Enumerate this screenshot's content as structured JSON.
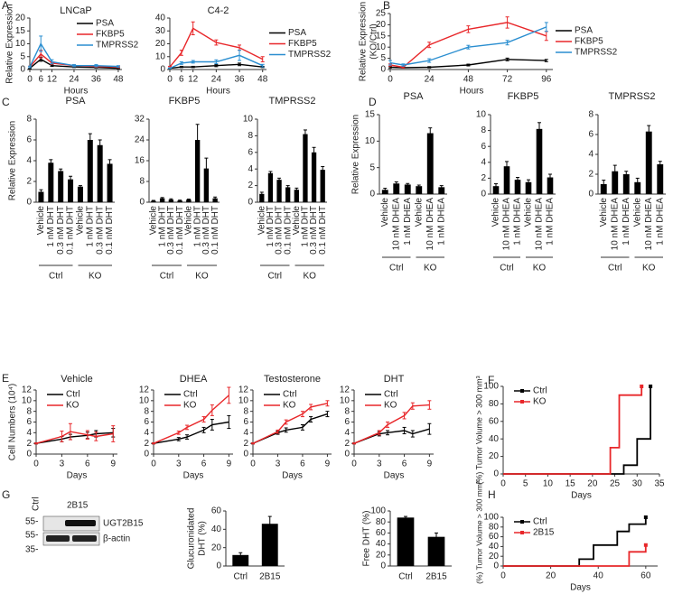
{
  "panel_labels": [
    "A",
    "B",
    "C",
    "D",
    "E",
    "F",
    "G",
    "H"
  ],
  "blot": {
    "lanes": [
      "Ctrl",
      "2B15"
    ],
    "bands": [
      "UGT2B15",
      "β-actin"
    ],
    "markers": [
      "55-",
      "55-",
      "35-"
    ]
  },
  "chart_data": [
    {
      "type": "line",
      "title": "LNCaP",
      "ylabel": [
        "Relative Expression"
      ],
      "xlabel": "Hours",
      "legend": "upper-right",
      "x": [
        0,
        6,
        12,
        24,
        36,
        48
      ],
      "xlim": [
        0,
        50
      ],
      "xticks": [
        0,
        6,
        12,
        24,
        36,
        48
      ],
      "ylim": [
        0,
        20
      ],
      "yticks": [
        0,
        5,
        10,
        15,
        20
      ],
      "series": [
        {
          "name": "PSA",
          "color": "#000000",
          "values": [
            0.5,
            4,
            1.5,
            1,
            0.8,
            0.5
          ],
          "errors": [
            0.2,
            0.8,
            0.3,
            0.2,
            0.2,
            0.2
          ]
        },
        {
          "name": "FKBP5",
          "color": "#e8272a",
          "values": [
            1,
            6,
            2.5,
            1.5,
            1.2,
            1
          ],
          "errors": [
            0.3,
            1.5,
            0.5,
            0.3,
            0.3,
            0.3
          ]
        },
        {
          "name": "TMPRSS2",
          "color": "#2a8ed0",
          "values": [
            1,
            10,
            3,
            1.5,
            1.5,
            1.2
          ],
          "errors": [
            0.3,
            3,
            0.8,
            0.4,
            0.4,
            0.3
          ]
        }
      ]
    },
    {
      "type": "line",
      "title": "C4-2",
      "xlabel": "Hours",
      "legend": "right",
      "x": [
        0,
        6,
        12,
        24,
        36,
        48
      ],
      "xlim": [
        0,
        50
      ],
      "xticks": [
        0,
        6,
        12,
        24,
        36,
        48
      ],
      "ylim": [
        0,
        40
      ],
      "yticks": [
        0,
        10,
        20,
        30,
        40
      ],
      "series": [
        {
          "name": "PSA",
          "color": "#000000",
          "values": [
            1,
            2,
            2,
            3,
            4,
            2
          ],
          "errors": [
            0.3,
            0.5,
            0.5,
            0.8,
            1,
            0.5
          ]
        },
        {
          "name": "FKBP5",
          "color": "#e8272a",
          "values": [
            2,
            13,
            32,
            21,
            17,
            8
          ],
          "errors": [
            0.5,
            2,
            5,
            2,
            2,
            2
          ]
        },
        {
          "name": "TMPRSS2",
          "color": "#2a8ed0",
          "values": [
            1,
            5,
            6,
            6,
            11,
            3
          ],
          "errors": [
            0.3,
            1,
            1,
            1.5,
            4,
            1
          ]
        }
      ]
    },
    {
      "type": "line",
      "ylabel": [
        "Relative Expression",
        "(KO/Ctrl)"
      ],
      "xlabel": "Hours",
      "legend": "right",
      "x": [
        0,
        8,
        24,
        48,
        72,
        96
      ],
      "xlim": [
        0,
        100
      ],
      "xticks": [
        0,
        24,
        48,
        72,
        96
      ],
      "ylim": [
        0,
        25
      ],
      "yticks": [
        0,
        5,
        10,
        15,
        20,
        25
      ],
      "series": [
        {
          "name": "PSA",
          "color": "#000000",
          "values": [
            1,
            0.8,
            1,
            2,
            4.5,
            4
          ],
          "errors": [
            0.3,
            0.2,
            0.3,
            0.4,
            0.6,
            0.5
          ]
        },
        {
          "name": "FKBP5",
          "color": "#e8272a",
          "values": [
            2,
            1,
            11,
            18,
            21,
            15
          ],
          "errors": [
            0.5,
            0.3,
            1.2,
            1.5,
            2.5,
            2
          ]
        },
        {
          "name": "TMPRSS2",
          "color": "#2a8ed0",
          "values": [
            3,
            2,
            4,
            10,
            12,
            19
          ],
          "errors": [
            1,
            0.5,
            0.8,
            0.8,
            1,
            2
          ]
        }
      ]
    },
    {
      "type": "bar",
      "title": "PSA",
      "ylabel": [
        "Relative Expression"
      ],
      "color": "#000000",
      "rotated_labels": true,
      "categories": [
        "Vehicle",
        "1 nM DHT",
        "0.3 nM DHT",
        "0.1 nM DHT",
        "Vehicle",
        "1 nM DHT",
        "0.3 nM DHT",
        "0.1 nM DHT"
      ],
      "groups": [
        "Ctrl",
        "KO"
      ],
      "values": [
        1,
        3.8,
        3,
        2.2,
        1.5,
        6,
        5.5,
        3.7
      ],
      "errors": [
        0.2,
        0.3,
        0.2,
        0.3,
        0.1,
        0.6,
        0.5,
        0.4
      ],
      "ylim": [
        0,
        8
      ],
      "yticks": [
        0,
        2,
        4,
        6,
        8
      ]
    },
    {
      "type": "bar",
      "title": "FKBP5",
      "color": "#000000",
      "rotated_labels": true,
      "categories": [
        "Vehicle",
        "1 nM DHT",
        "0.3 nM DHT",
        "0.1 nM DHT",
        "Vehicle",
        "1 nM DHT",
        "0.3 nM DHT",
        "0.1 nM DHT"
      ],
      "groups": [
        "Ctrl",
        "KO"
      ],
      "values": [
        0.5,
        1.5,
        1,
        0.6,
        1,
        24,
        13,
        1.5
      ],
      "errors": [
        0.2,
        0.3,
        0.3,
        0.2,
        0.2,
        6,
        4,
        0.5
      ],
      "ylim": [
        0,
        32
      ],
      "yticks": [
        0,
        8,
        16,
        24,
        32
      ]
    },
    {
      "type": "bar",
      "title": "TMPRSS2",
      "color": "#000000",
      "rotated_labels": true,
      "categories": [
        "Vehicle",
        "1 nM DHT",
        "0.3 nM DHT",
        "0.1 nM DHT",
        "Vehicle",
        "1 nM DHT",
        "0.3 nM DHT",
        "0.1 nM DHT"
      ],
      "groups": [
        "Ctrl",
        "KO"
      ],
      "values": [
        1,
        3.5,
        2.7,
        1.8,
        1.5,
        8.2,
        6,
        3.9
      ],
      "errors": [
        0.2,
        0.2,
        0.2,
        0.2,
        0.2,
        0.5,
        0.6,
        0.4
      ],
      "ylim": [
        0,
        10
      ],
      "yticks": [
        0,
        2,
        4,
        6,
        8,
        10
      ]
    },
    {
      "type": "bar",
      "title": "PSA",
      "ylabel": [
        "Relative Expression"
      ],
      "color": "#000000",
      "rotated_labels": true,
      "categories": [
        "Vehicle",
        "10 nM DHEA",
        "1 nM DHEA",
        "Vehicle",
        "10 nM DHEA",
        "1 nM DHEA"
      ],
      "groups": [
        "Ctrl",
        "KO"
      ],
      "values": [
        0.8,
        2,
        1.8,
        1.5,
        11.5,
        1.3
      ],
      "errors": [
        0.3,
        0.3,
        0.2,
        0.2,
        1,
        0.3
      ],
      "ylim": [
        0,
        15
      ],
      "yticks": [
        0,
        5,
        10,
        15
      ]
    },
    {
      "type": "bar",
      "title": "FKBP5",
      "color": "#000000",
      "rotated_labels": true,
      "categories": [
        "Vehicle",
        "10 nM DHEA",
        "1 nM DHEA",
        "Vehicle",
        "10 nM DHEA",
        "1 nM DHEA"
      ],
      "groups": [
        "Ctrl",
        "KO"
      ],
      "values": [
        1,
        3.5,
        1.8,
        1.5,
        8.2,
        2.1
      ],
      "errors": [
        0.3,
        0.6,
        0.3,
        0.3,
        0.8,
        0.4
      ],
      "ylim": [
        0,
        10
      ],
      "yticks": [
        0,
        2,
        4,
        6,
        8,
        10
      ]
    },
    {
      "type": "bar",
      "title": "TMPRSS2",
      "color": "#000000",
      "rotated_labels": true,
      "categories": [
        "Vehicle",
        "10 nM DHEA",
        "1 nM DHEA",
        "Vehicle",
        "10 nM DHEA",
        "1 nM DHEA"
      ],
      "groups": [
        "Ctrl",
        "KO"
      ],
      "values": [
        1,
        2.3,
        2,
        1.2,
        6.3,
        3
      ],
      "errors": [
        0.4,
        0.6,
        0.3,
        0.4,
        0.6,
        0.3
      ],
      "ylim": [
        0,
        8
      ],
      "yticks": [
        0,
        2,
        4,
        6,
        8
      ]
    },
    {
      "type": "line",
      "title": "Vehicle",
      "ylabel": [
        "Cell Numbers (10⁴)"
      ],
      "xlabel": "Days",
      "legend": "upper-left",
      "x": [
        0,
        3,
        4,
        6,
        7,
        9
      ],
      "xlim": [
        0,
        9.5
      ],
      "xticks": [
        0,
        3,
        6,
        9
      ],
      "ylim": [
        0,
        12
      ],
      "yticks": [
        0,
        2,
        4,
        6,
        8,
        10,
        12
      ],
      "series": [
        {
          "name": "Ctrl",
          "color": "#000000",
          "values": [
            2,
            2.8,
            3.2,
            3.5,
            3.8,
            4
          ],
          "errors": [
            0.1,
            0.5,
            0.5,
            0.6,
            0.6,
            0.8
          ]
        },
        {
          "name": "KO",
          "color": "#e8272a",
          "values": [
            2,
            3.3,
            4.2,
            3.6,
            3.3,
            3.8
          ],
          "errors": [
            0.1,
            1,
            1.5,
            0.8,
            0.8,
            1.5
          ]
        }
      ]
    },
    {
      "type": "line",
      "title": "DHEA",
      "xlabel": "Days",
      "legend": "upper-left",
      "x": [
        0,
        3,
        4,
        6,
        7,
        9
      ],
      "xlim": [
        0,
        9.5
      ],
      "xticks": [
        0,
        3,
        6,
        9
      ],
      "ylim": [
        0,
        12
      ],
      "yticks": [
        0,
        2,
        4,
        6,
        8,
        10,
        12
      ],
      "series": [
        {
          "name": "Ctrl",
          "color": "#000000",
          "values": [
            2,
            2.8,
            3.2,
            4.5,
            5.5,
            6
          ],
          "errors": [
            0.1,
            0.3,
            0.4,
            0.5,
            1,
            1.2
          ]
        },
        {
          "name": "KO",
          "color": "#e8272a",
          "values": [
            2,
            4,
            5,
            6.5,
            8.2,
            11
          ],
          "errors": [
            0.1,
            0.3,
            0.4,
            0.5,
            1,
            1.5
          ]
        }
      ]
    },
    {
      "type": "line",
      "title": "Testosterone",
      "xlabel": "Days",
      "legend": "upper-left",
      "x": [
        0,
        3,
        4,
        6,
        7,
        9
      ],
      "xlim": [
        0,
        9.5
      ],
      "xticks": [
        0,
        3,
        6,
        9
      ],
      "ylim": [
        0,
        12
      ],
      "yticks": [
        0,
        2,
        4,
        6,
        8,
        10,
        12
      ],
      "series": [
        {
          "name": "Ctrl",
          "color": "#000000",
          "values": [
            2,
            4,
            4.5,
            5,
            6.5,
            7.5
          ],
          "errors": [
            0.1,
            0.3,
            0.4,
            0.5,
            0.5,
            0.5
          ]
        },
        {
          "name": "KO",
          "color": "#e8272a",
          "values": [
            2,
            4.2,
            6,
            7.5,
            8.8,
            9.5
          ],
          "errors": [
            0.1,
            0.3,
            0.4,
            0.5,
            0.5,
            0.5
          ]
        }
      ]
    },
    {
      "type": "line",
      "title": "DHT",
      "xlabel": "Days",
      "legend": "upper-left",
      "x": [
        0,
        3,
        4,
        6,
        7,
        9
      ],
      "xlim": [
        0,
        9.5
      ],
      "xticks": [
        0,
        3,
        6,
        9
      ],
      "ylim": [
        0,
        12
      ],
      "yticks": [
        0,
        2,
        4,
        6,
        8,
        10,
        12
      ],
      "series": [
        {
          "name": "Ctrl",
          "color": "#000000",
          "values": [
            2,
            3.8,
            4,
            4.4,
            3.8,
            4.7
          ],
          "errors": [
            0.1,
            0.4,
            0.4,
            0.6,
            0.6,
            1
          ]
        },
        {
          "name": "KO",
          "color": "#e8272a",
          "values": [
            2,
            4,
            5.5,
            7.2,
            9,
            9.2
          ],
          "errors": [
            0.1,
            0.4,
            0.5,
            0.6,
            0.6,
            0.8
          ]
        }
      ]
    },
    {
      "type": "step",
      "ylabel": [
        "(%) Tumor Volume > 300 mm³"
      ],
      "xlabel": "Days",
      "legend": "upper-left",
      "xlim": [
        0,
        35
      ],
      "xticks": [
        0,
        5,
        10,
        15,
        20,
        25,
        30,
        35
      ],
      "ylim": [
        0,
        100
      ],
      "yticks": [
        0,
        20,
        40,
        60,
        80,
        100
      ],
      "series": [
        {
          "name": "Ctrl",
          "color": "#000000",
          "x": [
            0,
            27,
            30,
            33
          ],
          "values": [
            0,
            10,
            40,
            100
          ]
        },
        {
          "name": "KO",
          "color": "#e8272a",
          "x": [
            0,
            24,
            26,
            31
          ],
          "values": [
            0,
            30,
            90,
            100
          ]
        }
      ]
    },
    {
      "type": "bar",
      "ylabel": [
        "Glucuronidated",
        "DHT (%)"
      ],
      "color": "#000000",
      "categories": [
        "Ctrl",
        "2B15"
      ],
      "values": [
        12,
        46
      ],
      "errors": [
        2.5,
        8
      ],
      "ylim": [
        0,
        60
      ],
      "yticks": [
        0,
        20,
        40,
        60
      ]
    },
    {
      "type": "bar",
      "ylabel": [
        "Free DHT (%)"
      ],
      "color": "#000000",
      "categories": [
        "Ctrl",
        "2B15"
      ],
      "values": [
        88,
        53
      ],
      "errors": [
        2,
        7
      ],
      "ylim": [
        0,
        100
      ],
      "yticks": [
        0,
        20,
        40,
        60,
        80,
        100
      ]
    },
    {
      "type": "step",
      "ylabel": [
        "(%) Tumor Volume > 300 mm³"
      ],
      "xlabel": "Days",
      "legend": "upper-left",
      "xlim": [
        0,
        65
      ],
      "xticks": [
        0,
        20,
        40,
        60
      ],
      "ylim": [
        0,
        100
      ],
      "yticks": [
        0,
        20,
        40,
        60,
        80,
        100
      ],
      "series": [
        {
          "name": "Ctrl",
          "color": "#000000",
          "x": [
            0,
            32,
            38,
            48,
            53,
            60
          ],
          "values": [
            0,
            14,
            43,
            71,
            86,
            100
          ]
        },
        {
          "name": "2B15",
          "color": "#e8272a",
          "x": [
            0,
            53,
            60
          ],
          "values": [
            0,
            29,
            43
          ]
        }
      ]
    }
  ]
}
